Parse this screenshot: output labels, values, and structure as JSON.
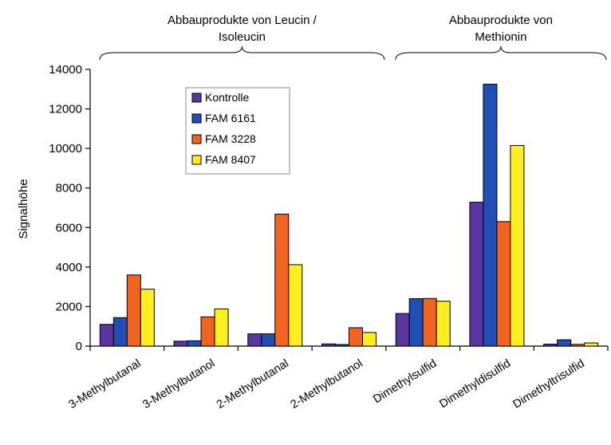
{
  "chart_data": {
    "type": "bar",
    "title": "",
    "xlabel": "",
    "ylabel": "Signalhöhe",
    "ylim": [
      0,
      14000
    ],
    "yticks": [
      0,
      2000,
      4000,
      6000,
      8000,
      10000,
      12000,
      14000
    ],
    "grid": false,
    "legend_position": "top-left inside plot",
    "categories": [
      "3-Methylbutanal",
      "3-Methylbutanol",
      "2-Methylbutanal",
      "2-Methylbutanol",
      "Dimethylsulfid",
      "Dimethyldisulfid",
      "Dimethyltrisulfid"
    ],
    "series": [
      {
        "name": "Kontrolle",
        "color": "#5b35a0",
        "values": [
          1100,
          250,
          620,
          110,
          1650,
          7280,
          100
        ]
      },
      {
        "name": "FAM 6161",
        "color": "#1f4fb5",
        "values": [
          1440,
          270,
          620,
          80,
          2400,
          13250,
          320
        ]
      },
      {
        "name": "FAM 3228",
        "color": "#f2631f",
        "values": [
          3600,
          1480,
          6680,
          930,
          2410,
          6300,
          90
        ]
      },
      {
        "name": "FAM 8407",
        "color": "#ffee1f",
        "values": [
          2880,
          1880,
          4120,
          690,
          2270,
          10150,
          160
        ]
      }
    ],
    "group_annotations": [
      {
        "label_lines": [
          "Abbauprodukte von Leucin /",
          "Isoleucin"
        ],
        "categories": [
          "3-Methylbutanal",
          "3-Methylbutanol",
          "2-Methylbutanal",
          "2-Methylbutanol"
        ]
      },
      {
        "label_lines": [
          "Abbauprodukte von",
          "Methionin"
        ],
        "categories": [
          "Dimethylsulfid",
          "Dimethyldisulfid",
          "Dimethyltrisulfid"
        ]
      }
    ]
  }
}
